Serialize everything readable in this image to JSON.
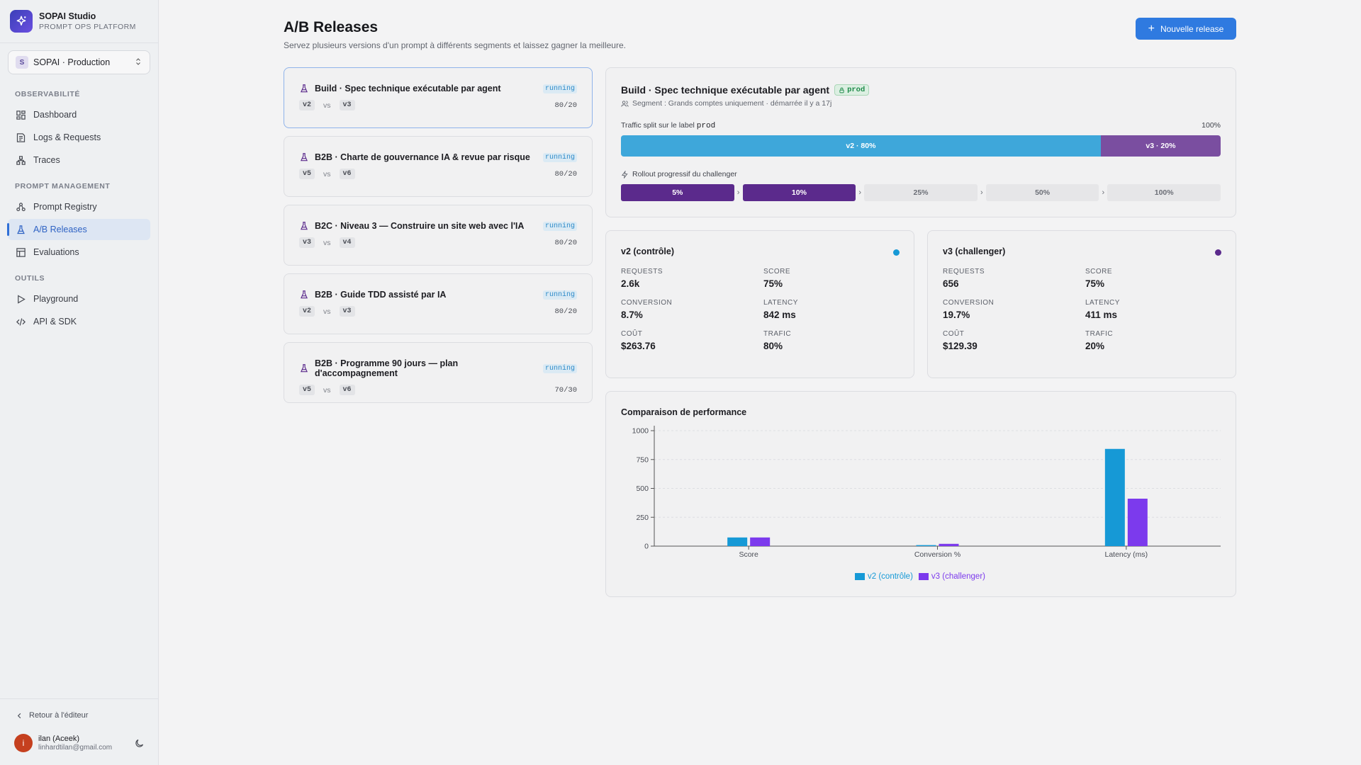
{
  "brand": {
    "title": "SOPAI Studio",
    "subtitle": "PROMPT OPS PLATFORM"
  },
  "project": {
    "badge": "S",
    "name": "SOPAI · Production"
  },
  "sidebar": {
    "sections": [
      {
        "label": "OBSERVABILITÉ",
        "items": [
          {
            "label": "Dashboard",
            "icon": "dashboard-icon"
          },
          {
            "label": "Logs & Requests",
            "icon": "logs-icon"
          },
          {
            "label": "Traces",
            "icon": "traces-icon"
          }
        ]
      },
      {
        "label": "PROMPT MANAGEMENT",
        "items": [
          {
            "label": "Prompt Registry",
            "icon": "registry-icon"
          },
          {
            "label": "A/B Releases",
            "icon": "flask-icon",
            "active": true
          },
          {
            "label": "Evaluations",
            "icon": "table-icon"
          }
        ]
      },
      {
        "label": "OUTILS",
        "items": [
          {
            "label": "Playground",
            "icon": "play-icon"
          },
          {
            "label": "API & SDK",
            "icon": "code-icon"
          }
        ]
      }
    ],
    "back_label": "Retour à l'éditeur",
    "user": {
      "initial": "i",
      "name": "ilan (Aceek)",
      "email": "linhardtilan@gmail.com"
    }
  },
  "header": {
    "title": "A/B Releases",
    "subtitle": "Servez plusieurs versions d'un prompt à différents segments et laissez gagner la meilleure.",
    "new_button": "Nouvelle release"
  },
  "vs_label": "vs",
  "releases": [
    {
      "title": "Build · Spec technique exécutable par agent",
      "status": "running",
      "a": "v2",
      "b": "v3",
      "split": "80/20"
    },
    {
      "title": "B2B · Charte de gouvernance IA & revue par risque",
      "status": "running",
      "a": "v5",
      "b": "v6",
      "split": "80/20"
    },
    {
      "title": "B2C · Niveau 3 — Construire un site web avec l'IA",
      "status": "running",
      "a": "v3",
      "b": "v4",
      "split": "80/20"
    },
    {
      "title": "B2B · Guide TDD assisté par IA",
      "status": "running",
      "a": "v2",
      "b": "v3",
      "split": "80/20"
    },
    {
      "title": "B2B · Programme 90 jours — plan d'accompagnement",
      "status": "running",
      "a": "v5",
      "b": "v6",
      "split": "70/30"
    }
  ],
  "detail": {
    "title": "Build · Spec technique exécutable par agent",
    "label_badge": "prod",
    "segment": "Segment : Grands comptes uniquement · démarrée il y a 17j",
    "split_prefix": "Traffic split sur le label",
    "split_label": "prod",
    "split_total": "100%",
    "traffic": [
      {
        "label": "v2 · 80%",
        "share": 80,
        "color": "#3ea7da"
      },
      {
        "label": "v3 · 20%",
        "share": 20,
        "color": "#7a4ea0"
      }
    ],
    "rollout_label": "Rollout progressif du challenger",
    "rollout_steps": [
      {
        "label": "5%",
        "done": true
      },
      {
        "label": "10%",
        "done": true
      },
      {
        "label": "25%",
        "done": false
      },
      {
        "label": "50%",
        "done": false
      },
      {
        "label": "100%",
        "done": false
      }
    ]
  },
  "variants": [
    {
      "title": "v2 (contrôle)",
      "color": "#1699d6",
      "stats": [
        {
          "k": "REQUESTS",
          "v": "2.6k"
        },
        {
          "k": "SCORE",
          "v": "75%"
        },
        {
          "k": "CONVERSION",
          "v": "8.7%"
        },
        {
          "k": "LATENCY",
          "v": "842 ms"
        },
        {
          "k": "COÛT",
          "v": "$263.76"
        },
        {
          "k": "TRAFIC",
          "v": "80%"
        }
      ]
    },
    {
      "title": "v3 (challenger)",
      "color": "#5b2a8c",
      "stats": [
        {
          "k": "REQUESTS",
          "v": "656"
        },
        {
          "k": "SCORE",
          "v": "75%"
        },
        {
          "k": "CONVERSION",
          "v": "19.7%"
        },
        {
          "k": "LATENCY",
          "v": "411 ms"
        },
        {
          "k": "COÛT",
          "v": "$129.39"
        },
        {
          "k": "TRAFIC",
          "v": "20%"
        }
      ]
    }
  ],
  "chart_data": {
    "type": "bar",
    "title": "Comparaison de performance",
    "categories": [
      "Score",
      "Conversion %",
      "Latency (ms)"
    ],
    "ylim": [
      0,
      1000
    ],
    "yticks": [
      0,
      250,
      500,
      750,
      1000
    ],
    "grid": true,
    "legend": "bottom",
    "series": [
      {
        "name": "v2 (contrôle)",
        "color": "#1699d6",
        "values": [
          75,
          8.7,
          842
        ]
      },
      {
        "name": "v3 (challenger)",
        "color": "#7c3aed",
        "values": [
          75,
          19.7,
          411
        ]
      }
    ]
  }
}
